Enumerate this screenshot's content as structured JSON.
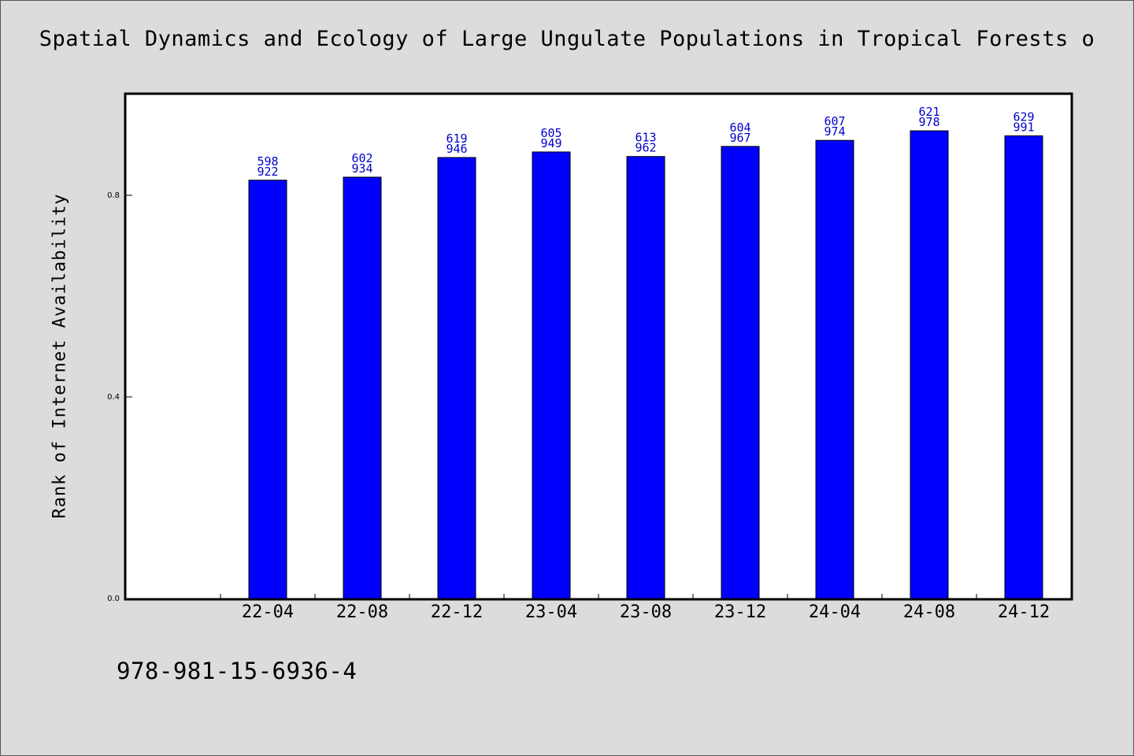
{
  "chart_data": {
    "type": "bar",
    "title": "Spatial Dynamics and Ecology of Large Ungulate Populations in Tropical Forests o",
    "xlabel": "",
    "ylabel": "Rank of Internet Availability",
    "categories": [
      "22-04",
      "22-08",
      "22-12",
      "23-04",
      "23-08",
      "23-12",
      "24-04",
      "24-08",
      "24-12"
    ],
    "values": [
      0.83,
      0.836,
      0.875,
      0.886,
      0.877,
      0.897,
      0.909,
      0.928,
      0.918
    ],
    "label_top": [
      "598",
      "602",
      "619",
      "605",
      "613",
      "604",
      "607",
      "621",
      "629"
    ],
    "label_bottom": [
      "922",
      "934",
      "946",
      "949",
      "962",
      "967",
      "974",
      "978",
      "991"
    ],
    "ylim": [
      0,
      1.0
    ],
    "yticks": [
      0.0,
      0.4,
      0.8
    ],
    "ytick_labels": [
      "0.0",
      "0.4",
      "0.8"
    ],
    "grid": false,
    "bar_color": "#0000ff",
    "label_color": "#0000cc"
  },
  "footer": {
    "isbn": "978-981-15-6936-4"
  }
}
